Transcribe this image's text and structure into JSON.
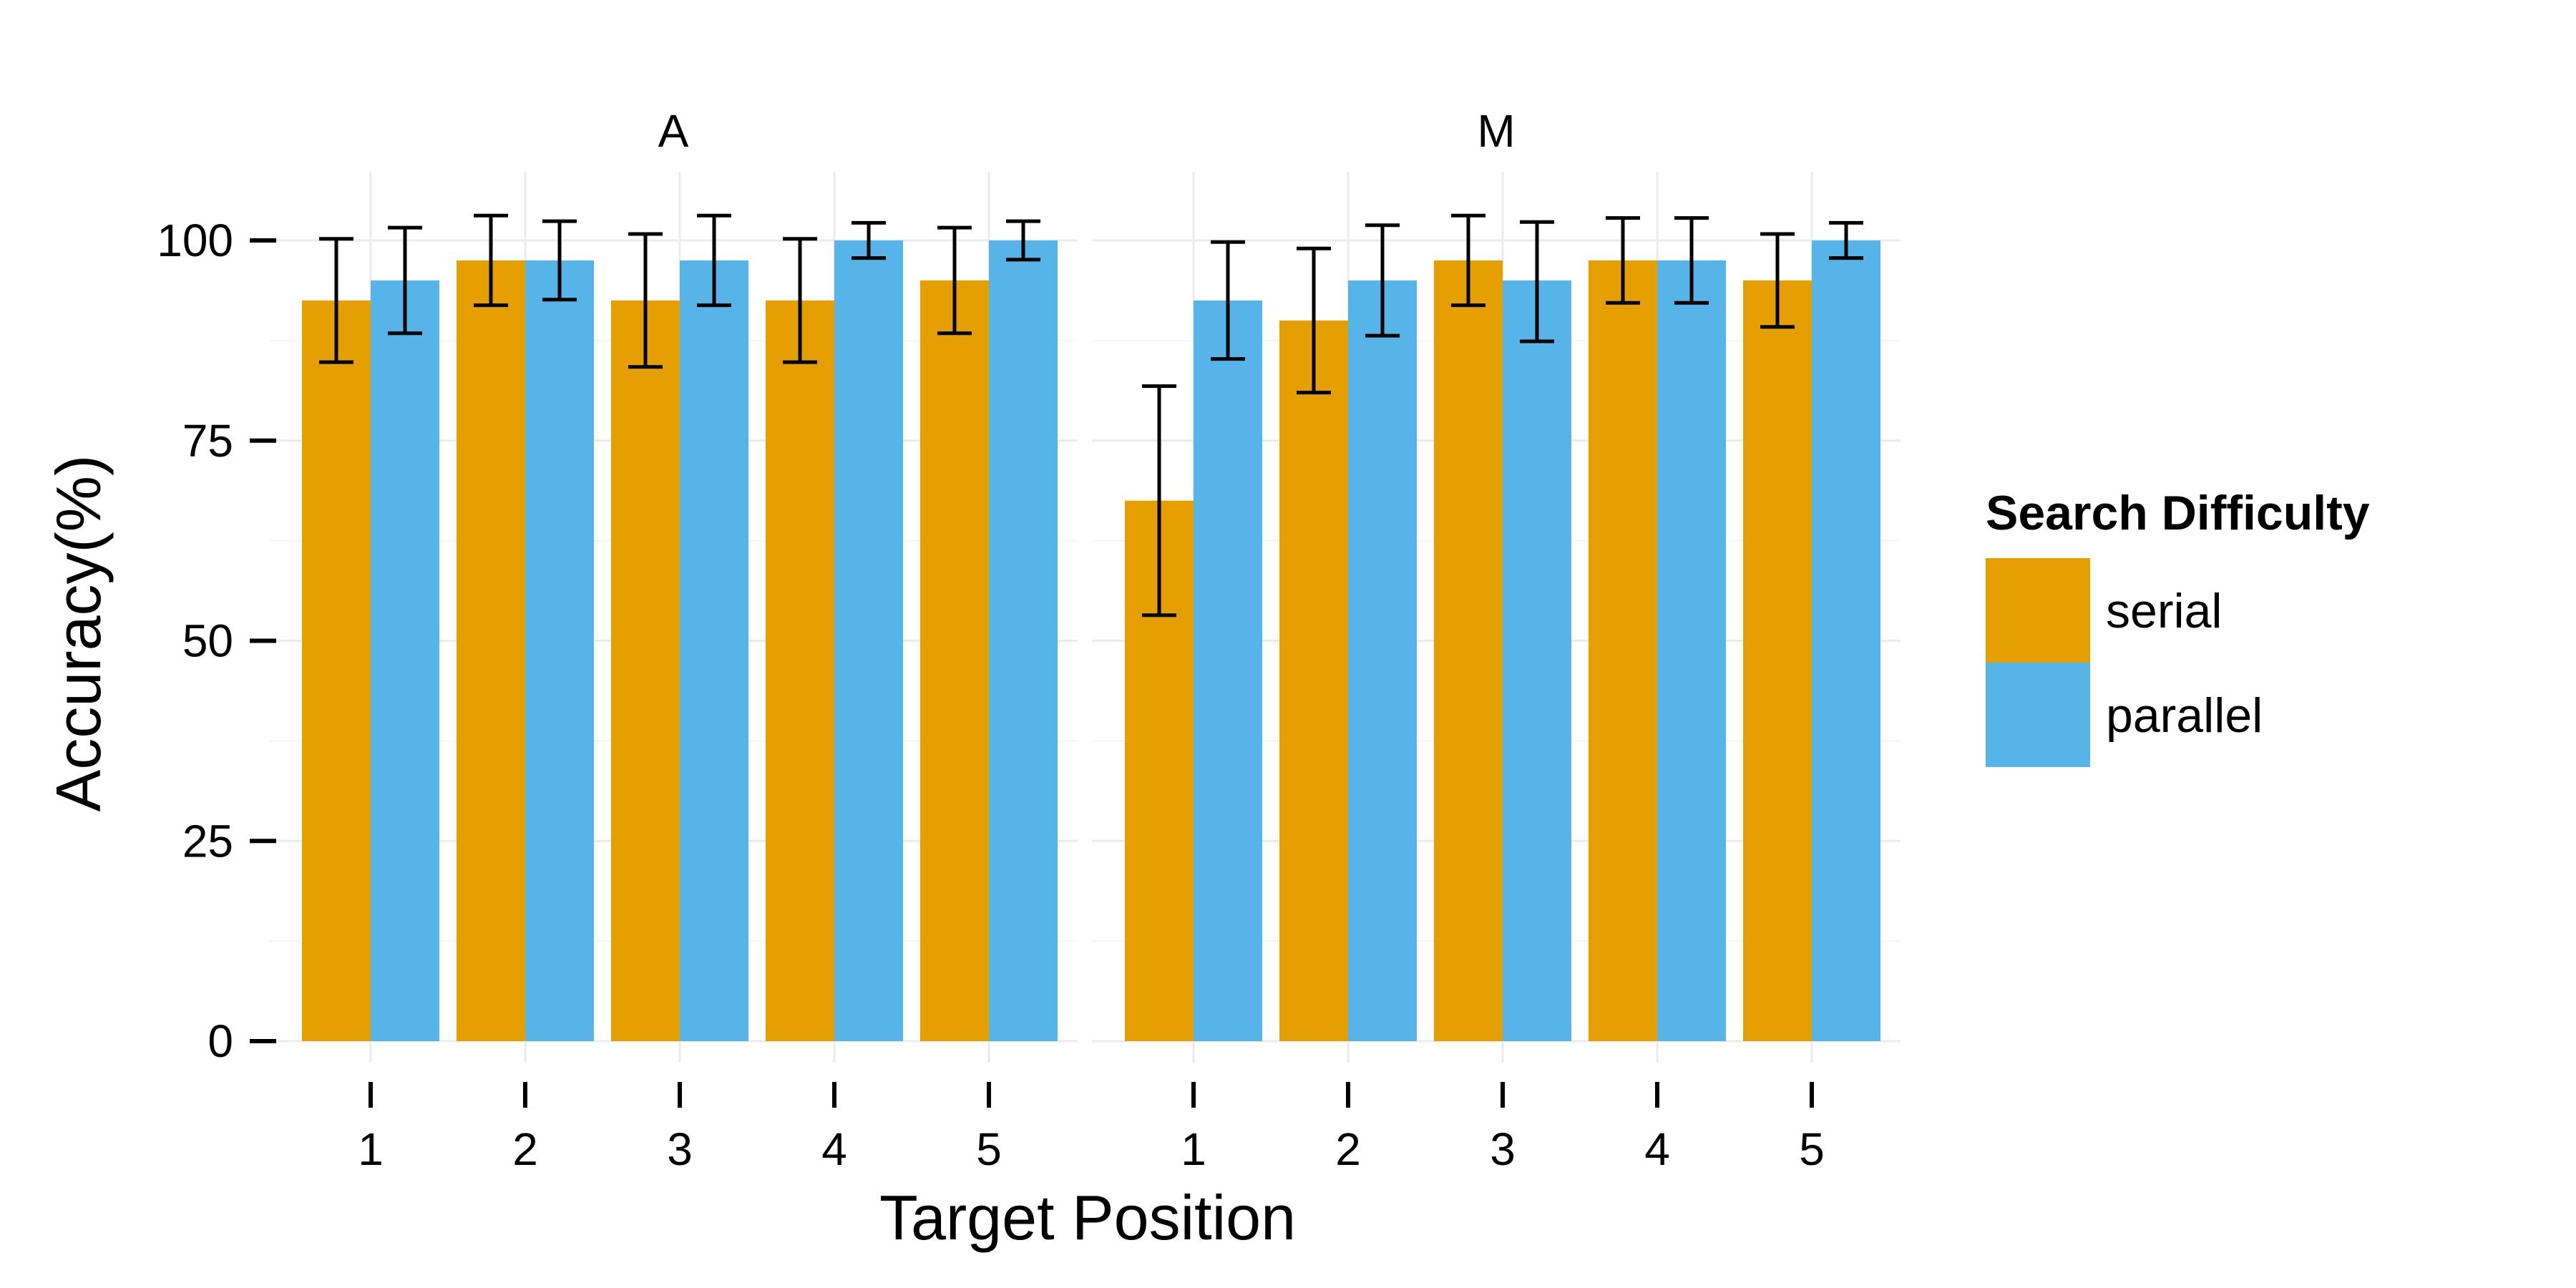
{
  "chart_data": {
    "type": "bar",
    "xlabel": "Target Position",
    "ylabel": "Accuracy(%)",
    "ylim": [
      0,
      100
    ],
    "yticks": [
      0,
      25,
      50,
      75,
      100
    ],
    "categories": [
      "1",
      "2",
      "3",
      "4",
      "5"
    ],
    "grid": true,
    "legend": {
      "title": "Search Difficulty",
      "placement": "right",
      "items": [
        {
          "label": "serial",
          "color": "#E69F00"
        },
        {
          "label": "parallel",
          "color": "#56B4E9"
        }
      ]
    },
    "facets": [
      {
        "title": "A",
        "series": [
          {
            "name": "serial",
            "color": "#E69F00",
            "values": [
              92.5,
              97.5,
              92.5,
              92.5,
              95
            ],
            "error_low": [
              84.8,
              91.9,
              84.2,
              84.8,
              88.4
            ],
            "error_high": [
              100.2,
              103.1,
              100.8,
              100.2,
              101.6
            ]
          },
          {
            "name": "parallel",
            "color": "#56B4E9",
            "values": [
              95,
              97.5,
              97.5,
              100,
              100
            ],
            "error_low": [
              88.4,
              92.6,
              91.9,
              97.8,
              97.6
            ],
            "error_high": [
              101.6,
              102.4,
              103.1,
              102.2,
              102.4
            ]
          }
        ]
      },
      {
        "title": "M",
        "series": [
          {
            "name": "serial",
            "color": "#E69F00",
            "values": [
              67.5,
              90,
              97.5,
              97.5,
              95
            ],
            "error_low": [
              53.2,
              81.0,
              91.9,
              92.2,
              89.2
            ],
            "error_high": [
              81.8,
              99.0,
              103.1,
              102.8,
              100.8
            ]
          },
          {
            "name": "parallel",
            "color": "#56B4E9",
            "values": [
              92.5,
              95,
              95,
              97.5,
              100
            ],
            "error_low": [
              85.2,
              88.1,
              87.4,
              92.2,
              97.8
            ],
            "error_high": [
              99.8,
              101.9,
              102.3,
              102.8,
              102.2
            ]
          }
        ]
      }
    ]
  }
}
